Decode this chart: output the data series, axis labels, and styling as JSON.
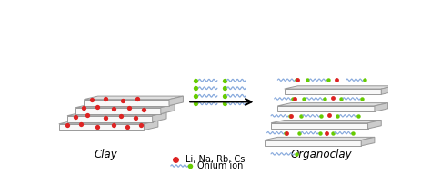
{
  "bg_color": "#ffffff",
  "clay_label": "Clay",
  "organoclay_label": "Organoclay",
  "legend_ion_label": "Li, Na, Rb, Cs",
  "legend_onium_label": "Onium ion",
  "ion_color": "#dd2222",
  "wavy_color_blue": "#88aadd",
  "dot_color_green": "#66cc00",
  "edge_color": "#999999",
  "face_color_main": "#f8f8f8",
  "face_color_top": "#e0e0e0",
  "face_color_right": "#cccccc"
}
